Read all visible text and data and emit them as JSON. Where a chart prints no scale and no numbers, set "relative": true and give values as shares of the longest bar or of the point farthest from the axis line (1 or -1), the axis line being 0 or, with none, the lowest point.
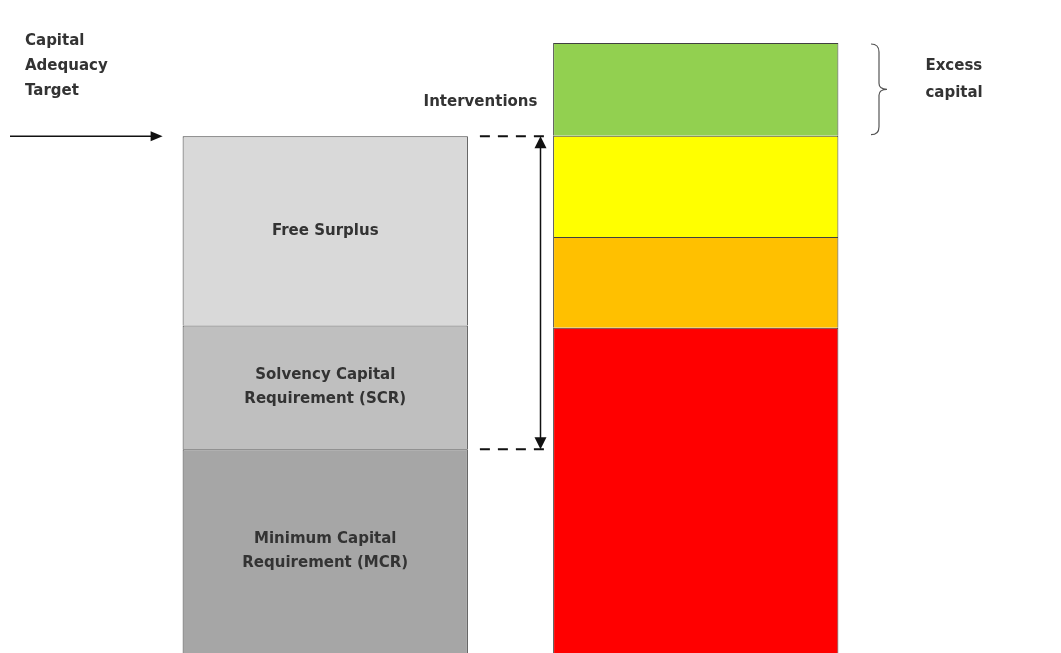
{
  "chart_data": {
    "type": "bar",
    "relative": true,
    "stacked": true,
    "categories": [
      null,
      null
    ],
    "series": [
      {
        "name": "Minimum Capital Requirement (MCR)",
        "colors": [
          "#a6a6a6",
          "#ff0000"
        ],
        "values": [
          0.334,
          0.533
        ]
      },
      {
        "name": "Solvency Capital Requirement (SCR)",
        "colors": [
          "#bfbfbf",
          "#ffc000"
        ],
        "values": [
          0.203,
          0.149
        ]
      },
      {
        "name": "Free Surplus",
        "colors": [
          "#d9d9d9",
          "#ffff00"
        ],
        "values": [
          0.31,
          0.166
        ]
      },
      {
        "colors": [
          null,
          "#92d050"
        ],
        "values": [
          null,
          0.152
        ]
      }
    ],
    "ref_lines": [
      {
        "axis": "y",
        "value": 0.847,
        "label": null,
        "line_style": "dashed"
      },
      {
        "axis": "y",
        "value": 0.334,
        "label": null,
        "line_style": "dashed"
      }
    ],
    "annotations": [
      "Capital Adequacy Target",
      "Interventions",
      "Excess capital"
    ],
    "grid": false,
    "legend": false
  }
}
